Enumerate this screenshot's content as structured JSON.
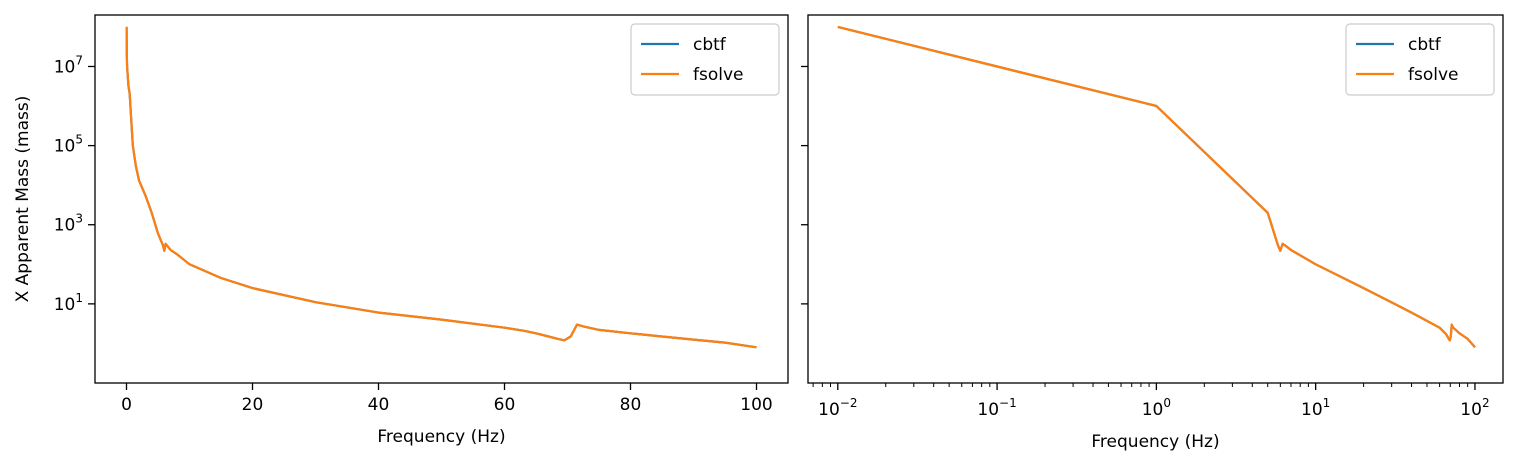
{
  "chart_data": [
    {
      "type": "line",
      "xlabel": "Frequency (Hz)",
      "ylabel": "X Apparent Mass (mass)",
      "xscale": "linear",
      "yscale": "log",
      "xlim": [
        -5,
        105
      ],
      "ylim": [
        0.1,
        200000000
      ],
      "xticks": [
        0,
        20,
        40,
        60,
        80,
        100
      ],
      "xtick_labels": [
        "0",
        "20",
        "40",
        "60",
        "80",
        "100"
      ],
      "yticks": [
        10,
        1000,
        100000,
        10000000
      ],
      "ytick_labels": [
        {
          "base": "10",
          "exp": "1"
        },
        {
          "base": "10",
          "exp": "3"
        },
        {
          "base": "10",
          "exp": "5"
        },
        {
          "base": "10",
          "exp": "7"
        }
      ],
      "grid": false,
      "legend": "top-right",
      "series": [
        {
          "name": "cbtf",
          "color": "#1f77b4",
          "x": [
            0.01,
            0.05,
            0.1,
            0.3,
            0.5,
            1,
            1.5,
            2,
            3,
            4,
            5,
            5.8,
            6.0,
            6.2,
            6.5,
            7,
            8,
            10,
            15,
            20,
            30,
            40,
            50,
            60,
            63,
            65,
            67,
            68.5,
            69.5,
            70.5,
            71.5,
            72.5,
            75,
            80,
            85,
            90,
            95,
            100
          ],
          "y": [
            100000000,
            20000000,
            10000000,
            3300000,
            2000000,
            101000,
            30000,
            13000,
            5500,
            2000,
            600,
            300,
            220,
            330,
            290,
            230,
            180,
            100,
            45,
            25,
            11,
            6,
            4,
            2.5,
            2.1,
            1.8,
            1.5,
            1.3,
            1.2,
            1.5,
            3.0,
            2.7,
            2.2,
            1.8,
            1.5,
            1.25,
            1.05,
            0.8
          ]
        },
        {
          "name": "fsolve",
          "color": "#ff7f0e",
          "x": [
            0.01,
            0.05,
            0.1,
            0.3,
            0.5,
            1,
            1.5,
            2,
            3,
            4,
            5,
            5.8,
            6.0,
            6.2,
            6.5,
            7,
            8,
            10,
            15,
            20,
            30,
            40,
            50,
            60,
            63,
            65,
            67,
            68.5,
            69.5,
            70.5,
            71.5,
            72.5,
            75,
            80,
            85,
            90,
            95,
            100
          ],
          "y": [
            100000000,
            20000000,
            10000000,
            3300000,
            2000000,
            101000,
            30000,
            13000,
            5500,
            2000,
            600,
            300,
            220,
            330,
            290,
            230,
            180,
            100,
            45,
            25,
            11,
            6,
            4,
            2.5,
            2.1,
            1.8,
            1.5,
            1.3,
            1.2,
            1.5,
            3.0,
            2.7,
            2.2,
            1.8,
            1.5,
            1.25,
            1.05,
            0.8
          ]
        }
      ]
    },
    {
      "type": "line",
      "xlabel": "Frequency (Hz)",
      "ylabel": "",
      "xscale": "log",
      "yscale": "log",
      "xlim": [
        0.0065,
        150
      ],
      "ylim": [
        0.1,
        200000000
      ],
      "xticks": [
        0.01,
        0.1,
        1,
        10,
        100
      ],
      "xtick_labels": [
        {
          "base": "10",
          "exp": "−2"
        },
        {
          "base": "10",
          "exp": "−1"
        },
        {
          "base": "10",
          "exp": "0"
        },
        {
          "base": "10",
          "exp": "1"
        },
        {
          "base": "10",
          "exp": "2"
        }
      ],
      "yticks": [
        10,
        1000,
        100000,
        10000000
      ],
      "ytick_labels": [],
      "grid": false,
      "legend": "top-right",
      "series": [
        {
          "name": "cbtf",
          "color": "#1f77b4",
          "x": [
            0.01,
            0.1,
            1,
            5,
            5.8,
            6.0,
            6.2,
            6.5,
            7,
            10,
            20,
            40,
            60,
            66,
            68.5,
            69.5,
            70.5,
            71.5,
            73,
            80,
            90,
            100
          ],
          "y": [
            100000000,
            10000000,
            1000000,
            2000,
            300,
            220,
            330,
            290,
            230,
            100,
            25,
            6,
            2.5,
            1.7,
            1.3,
            1.2,
            1.5,
            3.0,
            2.5,
            1.8,
            1.3,
            0.8
          ]
        },
        {
          "name": "fsolve",
          "color": "#ff7f0e",
          "x": [
            0.01,
            0.1,
            1,
            5,
            5.8,
            6.0,
            6.2,
            6.5,
            7,
            10,
            20,
            40,
            60,
            66,
            68.5,
            69.5,
            70.5,
            71.5,
            73,
            80,
            90,
            100
          ],
          "y": [
            100000000,
            10000000,
            1000000,
            2000,
            300,
            220,
            330,
            290,
            230,
            100,
            25,
            6,
            2.5,
            1.7,
            1.3,
            1.2,
            1.5,
            3.0,
            2.5,
            1.8,
            1.3,
            0.8
          ]
        }
      ]
    }
  ]
}
